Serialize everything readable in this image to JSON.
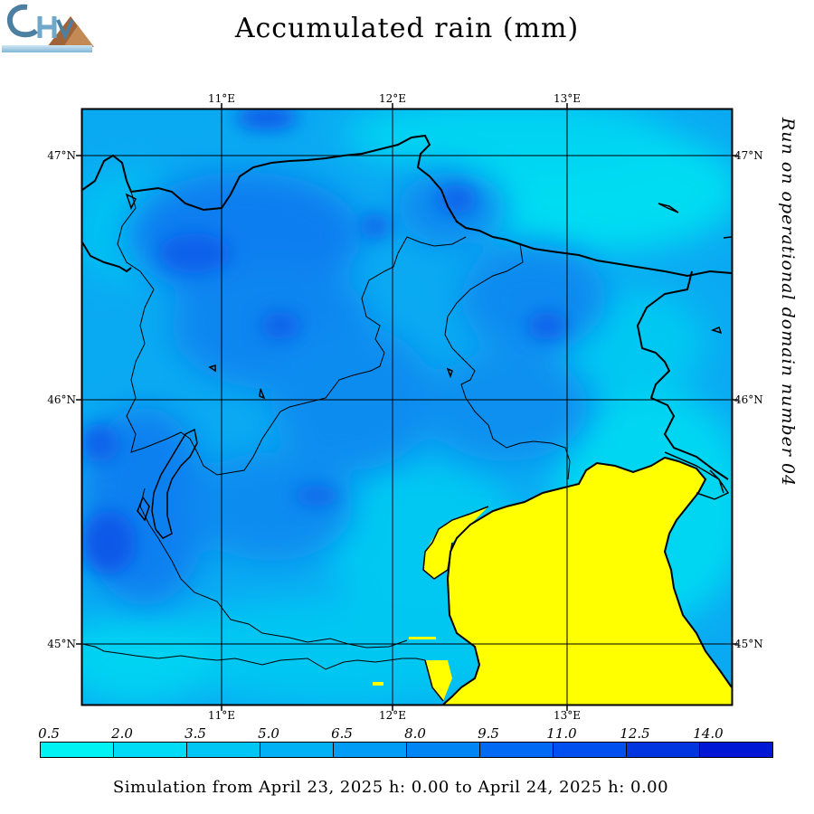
{
  "title": "Accumulated rain (mm)",
  "side_note": "Run on operational domain number 04",
  "footer": "Simulation from April 23, 2025 h: 0.00 to April 24, 2025 h: 0.00",
  "map": {
    "lon_labels": [
      "11°E",
      "12°E",
      "13°E"
    ],
    "lat_labels": [
      "47°N",
      "46°N",
      "45°N"
    ],
    "ocean_color": "#ffff00",
    "border_color": "#000000"
  },
  "legend": {
    "values": [
      "0.5",
      "2.0",
      "3.5",
      "5.0",
      "6.5",
      "8.0",
      "9.5",
      "11.0",
      "12.5",
      "14.0"
    ],
    "colors": [
      "#00f2f2",
      "#00dcf5",
      "#00c6f5",
      "#00b2f5",
      "#009cf5",
      "#0085f5",
      "#006af5",
      "#0050f0",
      "#0035e0",
      "#0018d5"
    ]
  },
  "icons": {
    "logo": "chym-logo-icon"
  }
}
